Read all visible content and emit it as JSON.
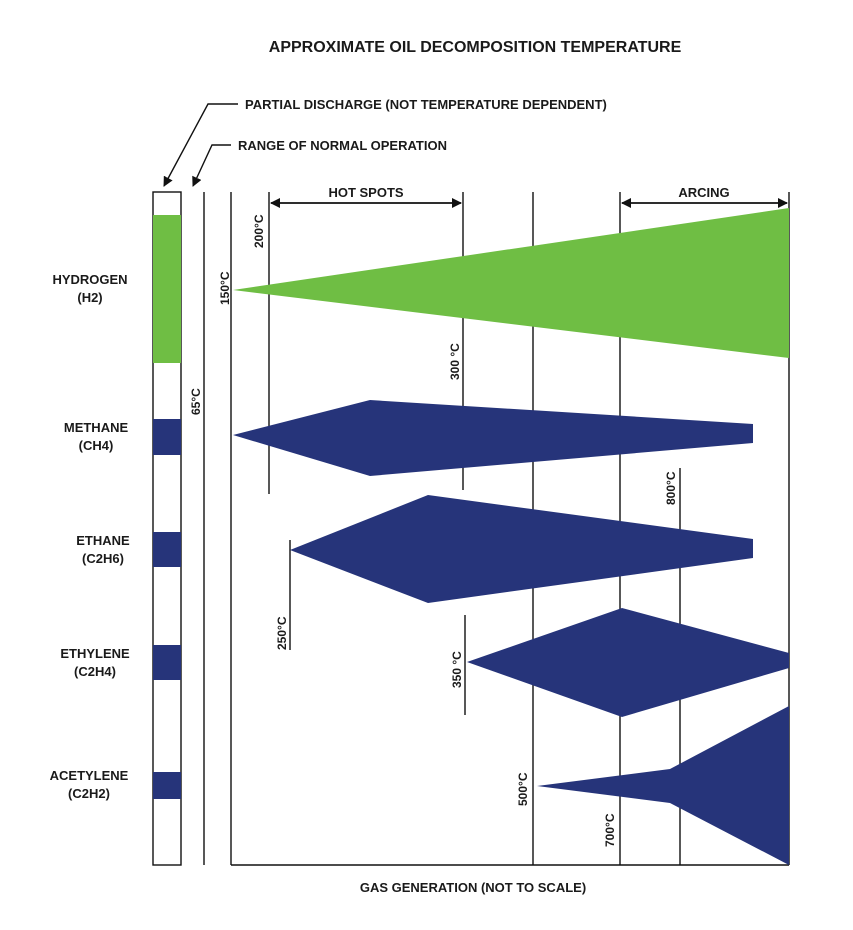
{
  "title": "APPROXIMATE OIL DECOMPOSITION TEMPERATURE",
  "notes": {
    "partial_discharge": "PARTIAL DISCHARGE (NOT TEMPERATURE DEPENDENT)",
    "normal_operation": "RANGE OF NORMAL OPERATION"
  },
  "ranges": {
    "hot_spots": "HOT SPOTS",
    "arcing": "ARCING"
  },
  "footer": "GAS GENERATION (NOT TO SCALE)",
  "colors": {
    "hydrogen": "#6fbe44",
    "hydrocarbons": "#26347a",
    "line": "#111111"
  },
  "gases": [
    {
      "name": "HYDROGEN",
      "formula": "(H2)"
    },
    {
      "name": "METHANE",
      "formula": "(CH4)"
    },
    {
      "name": "ETHANE",
      "formula": "(C2H6)"
    },
    {
      "name": "ETHYLENE",
      "formula": "(C2H4)"
    },
    {
      "name": "ACETYLENE",
      "formula": "(C2H2)"
    }
  ],
  "temperatures": {
    "t65": "65°C",
    "t150": "150°C",
    "t200": "200°C",
    "t250": "250°C",
    "t300": "300 °C",
    "t350": "350 °C",
    "t500": "500°C",
    "t700": "700°C",
    "t800": "800°C"
  }
}
